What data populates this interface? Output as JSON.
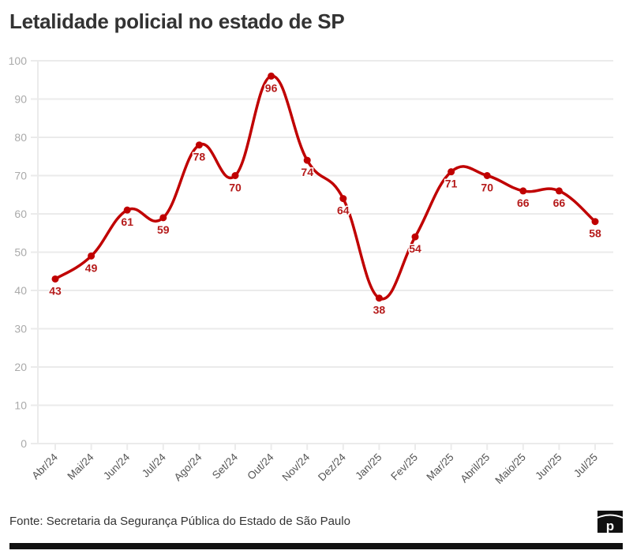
{
  "title": "Letalidade policial no estado de SP",
  "source": "Fonte: Secretaria da Segurança Pública do Estado de São Paulo",
  "logo_text": "p",
  "colors": {
    "line": "#c00000",
    "label": "#b51a1a",
    "grid": "#ebebeb",
    "tick_text": "#aaaaaa",
    "category_text": "#555555"
  },
  "chart_data": {
    "type": "line",
    "title": "Letalidade policial no estado de SP",
    "xlabel": "",
    "ylabel": "",
    "ylim": [
      0,
      100
    ],
    "yticks": [
      0,
      10,
      20,
      30,
      40,
      50,
      60,
      70,
      80,
      90,
      100
    ],
    "grid": true,
    "legend": "none",
    "categories": [
      "Abr/24",
      "Mai/24",
      "Jun/24",
      "Jul/24",
      "Ago/24",
      "Set/24",
      "Out/24",
      "Nov/24",
      "Dez/24",
      "Jan/25",
      "Fev/25",
      "Mar/25",
      "Abril/25",
      "Maio/25",
      "Jun/25",
      "Jul/25"
    ],
    "series": [
      {
        "name": "Letalidade policial",
        "values": [
          43,
          49,
          61,
          59,
          78,
          70,
          96,
          74,
          64,
          38,
          54,
          71,
          70,
          66,
          66,
          58
        ]
      }
    ]
  }
}
